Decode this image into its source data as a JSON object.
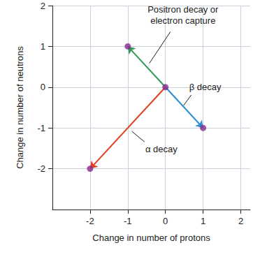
{
  "chart_data": {
    "type": "scatter",
    "x_label": "Change in number of protons",
    "y_label": "Change in number of neutrons",
    "xlim": [
      -3,
      2.25
    ],
    "ylim": [
      -3,
      2
    ],
    "xticks": [
      -2,
      -1,
      0,
      1,
      2
    ],
    "yticks": [
      -2,
      -1,
      0,
      1,
      2
    ],
    "grid": true,
    "x": [
      0,
      -1,
      1,
      -2
    ],
    "y": [
      0,
      1,
      -1,
      -2
    ],
    "color": "#8a2b8f",
    "arrows": [
      {
        "name": "Positron decay or\nelectron capture",
        "from": [
          0,
          0
        ],
        "to": [
          -1,
          1
        ],
        "color": "#2f9a55"
      },
      {
        "name": "β decay",
        "from": [
          0,
          0
        ],
        "to": [
          1,
          -1
        ],
        "color": "#2a8fd0"
      },
      {
        "name": "α decay",
        "from": [
          0,
          0
        ],
        "to": [
          -2,
          -2
        ],
        "color": "#e3401f"
      }
    ]
  }
}
